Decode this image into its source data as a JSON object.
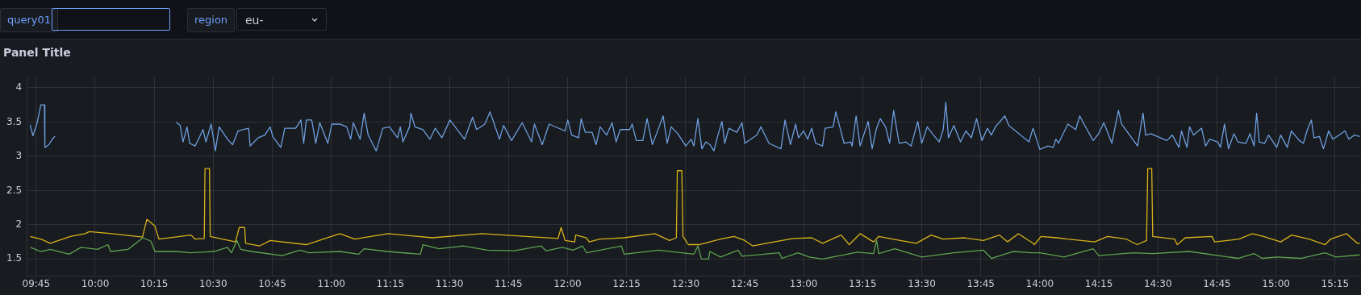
{
  "chart_data": {
    "type": "line",
    "title": "Panel Title",
    "annotations": [
      "query01",
      "region",
      "eu-"
    ],
    "xlim": [
      9.71,
      15.36
    ],
    "xticks": [
      {
        "value": 9.75,
        "label": "09:45"
      },
      {
        "value": 10,
        "label": "10:00"
      },
      {
        "value": 10.25,
        "label": "10:15"
      },
      {
        "value": 10.5,
        "label": "10:30"
      },
      {
        "value": 10.75,
        "label": "10:45"
      },
      {
        "value": 11,
        "label": "11:00"
      },
      {
        "value": 11.25,
        "label": "11:15"
      },
      {
        "value": 11.5,
        "label": "11:30"
      },
      {
        "value": 11.75,
        "label": "11:45"
      },
      {
        "value": 12,
        "label": "12:00"
      },
      {
        "value": 12.25,
        "label": "12:15"
      },
      {
        "value": 12.5,
        "label": "12:30"
      },
      {
        "value": 12.75,
        "label": "12:45"
      },
      {
        "value": 13,
        "label": "13:00"
      },
      {
        "value": 13.25,
        "label": "13:15"
      },
      {
        "value": 13.5,
        "label": "13:30"
      },
      {
        "value": 13.75,
        "label": "13:45"
      },
      {
        "value": 14,
        "label": "14:00"
      },
      {
        "value": 14.25,
        "label": "14:15"
      },
      {
        "value": 14.5,
        "label": "14:30"
      },
      {
        "value": 14.75,
        "label": "14:45"
      },
      {
        "value": 15,
        "label": "15:00"
      },
      {
        "value": 15.25,
        "label": "15:15"
      }
    ],
    "ylim": [
      1.25,
      4.15
    ],
    "yticks": [
      1.5,
      2,
      2.5,
      3,
      3.5,
      4
    ],
    "grid": true,
    "legend": false,
    "marker": "none",
    "series": [
      {
        "color": "#6e9fe0",
        "x": [
          9.725,
          9.736,
          9.753,
          9.77,
          9.785,
          9.787,
          9.804,
          9.82,
          9.83,
          9.84,
          10.343,
          10.36,
          10.372,
          10.389,
          10.4,
          10.423,
          10.457,
          10.469,
          10.491,
          10.509,
          10.525,
          10.56,
          10.582,
          10.605,
          10.65,
          10.656,
          10.69,
          10.718,
          10.741,
          10.752,
          10.786,
          10.803,
          10.849,
          10.871,
          10.883,
          10.894,
          10.917,
          10.934,
          10.951,
          10.985,
          11.002,
          11.036,
          11.065,
          11.082,
          11.093,
          11.122,
          11.139,
          11.156,
          11.19,
          11.218,
          11.246,
          11.28,
          11.292,
          11.303,
          11.331,
          11.337,
          11.354,
          11.388,
          11.417,
          11.44,
          11.468,
          11.502,
          11.564,
          11.598,
          11.615,
          11.65,
          11.672,
          11.712,
          11.729,
          11.763,
          11.808,
          11.848,
          11.86,
          11.893,
          11.922,
          11.99,
          12.001,
          12.018,
          12.047,
          12.058,
          12.075,
          12.104,
          12.121,
          12.138,
          12.166,
          12.189,
          12.206,
          12.223,
          12.263,
          12.274,
          12.291,
          12.319,
          12.337,
          12.359,
          12.388,
          12.405,
          12.422,
          12.439,
          12.467,
          12.501,
          12.524,
          12.535,
          12.552,
          12.569,
          12.586,
          12.603,
          12.62,
          12.637,
          12.654,
          12.666,
          12.683,
          12.717,
          12.739,
          12.751,
          12.802,
          12.819,
          12.853,
          12.904,
          12.921,
          12.944,
          12.966,
          12.978,
          13.0,
          13.017,
          13.034,
          13.051,
          13.08,
          13.091,
          13.125,
          13.136,
          13.153,
          13.171,
          13.199,
          13.205,
          13.222,
          13.239,
          13.262,
          13.273,
          13.29,
          13.307,
          13.324,
          13.347,
          13.364,
          13.381,
          13.404,
          13.432,
          13.455,
          13.483,
          13.5,
          13.523,
          13.545,
          13.574,
          13.591,
          13.602,
          13.613,
          13.636,
          13.664,
          13.687,
          13.71,
          13.732,
          13.755,
          13.778,
          13.795,
          13.812,
          13.852,
          13.869,
          13.954,
          13.971,
          14.0,
          14.034,
          14.057,
          14.068,
          14.079,
          14.096,
          14.119,
          14.152,
          14.169,
          14.187,
          14.226,
          14.249,
          14.271,
          14.305,
          14.333,
          14.346,
          14.414,
          14.437,
          14.448,
          14.47,
          14.538,
          14.561,
          14.589,
          14.6,
          14.623,
          14.634,
          14.651,
          14.685,
          14.702,
          14.719,
          14.753,
          14.765,
          14.782,
          14.799,
          14.822,
          14.839,
          14.873,
          14.89,
          14.907,
          14.918,
          14.929,
          14.952,
          14.969,
          15.003,
          15.02,
          15.048,
          15.065,
          15.099,
          15.116,
          15.133,
          15.15,
          15.161,
          15.184,
          15.201,
          15.223,
          15.241,
          15.292,
          15.309,
          15.332,
          15.355
        ],
        "values": [
          3.46,
          3.3,
          3.47,
          3.75,
          3.75,
          3.13,
          3.17,
          3.26,
          3.29,
          null,
          3.5,
          3.45,
          3.21,
          3.43,
          3.19,
          3.15,
          3.39,
          3.21,
          3.47,
          3.08,
          3.43,
          3.25,
          3.17,
          3.37,
          3.41,
          3.15,
          3.27,
          3.31,
          3.43,
          3.29,
          3.13,
          3.41,
          3.41,
          3.53,
          3.19,
          3.53,
          3.53,
          3.19,
          3.49,
          3.19,
          3.47,
          3.47,
          3.43,
          3.25,
          3.49,
          3.25,
          3.63,
          3.31,
          3.08,
          3.41,
          3.43,
          3.27,
          3.43,
          3.21,
          3.43,
          3.63,
          3.43,
          3.39,
          3.25,
          3.41,
          3.27,
          3.53,
          3.25,
          3.57,
          3.39,
          3.47,
          3.65,
          3.25,
          3.45,
          3.23,
          3.49,
          3.21,
          3.47,
          3.17,
          3.47,
          3.37,
          3.53,
          3.31,
          3.27,
          3.55,
          3.35,
          3.35,
          3.17,
          3.43,
          3.31,
          3.49,
          3.21,
          3.39,
          3.39,
          3.47,
          3.23,
          3.23,
          3.55,
          3.17,
          3.43,
          3.59,
          3.19,
          3.43,
          3.33,
          3.15,
          3.25,
          3.15,
          3.55,
          3.11,
          3.21,
          3.17,
          3.08,
          3.31,
          3.51,
          3.19,
          3.41,
          3.35,
          3.49,
          3.19,
          3.31,
          3.43,
          3.19,
          3.11,
          3.53,
          3.17,
          3.47,
          3.27,
          3.37,
          3.25,
          3.41,
          3.19,
          3.15,
          3.41,
          3.43,
          3.65,
          3.43,
          3.19,
          3.21,
          3.15,
          3.59,
          3.15,
          3.39,
          3.51,
          3.11,
          3.39,
          3.55,
          3.43,
          3.19,
          3.67,
          3.19,
          3.21,
          3.15,
          3.51,
          3.19,
          3.43,
          3.33,
          3.21,
          3.39,
          3.79,
          3.27,
          3.45,
          3.21,
          3.37,
          3.27,
          3.55,
          3.23,
          3.41,
          3.31,
          3.43,
          3.59,
          3.45,
          3.21,
          3.41,
          3.1,
          3.15,
          3.13,
          3.25,
          3.19,
          3.31,
          3.47,
          3.39,
          3.59,
          3.47,
          3.23,
          3.33,
          3.49,
          3.19,
          3.67,
          3.47,
          3.15,
          3.63,
          3.31,
          3.33,
          3.23,
          3.31,
          3.13,
          3.37,
          3.13,
          3.43,
          3.31,
          3.41,
          3.15,
          3.25,
          3.21,
          3.13,
          3.47,
          3.11,
          3.33,
          3.21,
          3.19,
          3.33,
          3.15,
          3.63,
          3.21,
          3.19,
          3.31,
          3.13,
          3.31,
          3.13,
          3.37,
          3.23,
          3.19,
          3.39,
          3.53,
          3.27,
          3.29,
          3.11,
          3.37,
          3.25,
          3.37,
          3.25,
          3.31,
          3.29
        ]
      },
      {
        "color": "#d9b21a",
        "x": [
          9.725,
          9.77,
          9.81,
          9.895,
          9.958,
          9.975,
          10.043,
          10.071,
          10.2,
          10.219,
          10.253,
          10.27,
          10.406,
          10.423,
          10.462,
          10.465,
          10.484,
          10.487,
          10.594,
          10.61,
          10.633,
          10.637,
          10.696,
          10.741,
          10.894,
          11.036,
          11.099,
          11.241,
          11.428,
          11.638,
          11.96,
          11.973,
          11.99,
          12.03,
          12.035,
          12.08,
          12.092,
          12.137,
          12.24,
          12.37,
          12.432,
          12.461,
          12.465,
          12.484,
          12.489,
          12.512,
          12.557,
          12.648,
          12.705,
          12.751,
          12.785,
          12.842,
          12.955,
          13.034,
          13.08,
          13.159,
          13.193,
          13.239,
          13.296,
          13.318,
          13.409,
          13.477,
          13.54,
          13.59,
          13.681,
          13.761,
          13.829,
          13.863,
          13.909,
          13.971,
          13.977,
          14.005,
          14.073,
          14.118,
          14.232,
          14.287,
          14.367,
          14.412,
          14.452,
          14.457,
          14.474,
          14.478,
          14.571,
          14.582,
          14.616,
          14.729,
          14.74,
          14.843,
          14.9,
          14.947,
          15.02,
          15.066,
          15.14,
          15.208,
          15.231,
          15.299,
          15.344,
          15.355
        ],
        "values": [
          1.83,
          1.79,
          1.73,
          1.83,
          1.87,
          1.9,
          1.88,
          1.87,
          1.82,
          2.08,
          1.98,
          1.79,
          1.85,
          1.79,
          1.8,
          2.82,
          2.82,
          1.83,
          1.75,
          1.96,
          1.96,
          1.73,
          1.69,
          1.77,
          1.71,
          1.87,
          1.79,
          1.87,
          1.81,
          1.87,
          1.8,
          1.96,
          1.77,
          1.75,
          1.85,
          1.81,
          1.75,
          1.79,
          1.81,
          1.87,
          1.77,
          1.81,
          2.79,
          2.79,
          1.83,
          1.71,
          1.71,
          1.79,
          1.83,
          1.77,
          1.69,
          1.73,
          1.8,
          1.81,
          1.73,
          1.85,
          1.71,
          1.87,
          1.75,
          1.83,
          1.77,
          1.73,
          1.85,
          1.79,
          1.81,
          1.77,
          1.85,
          1.75,
          1.87,
          1.73,
          1.71,
          1.83,
          1.81,
          1.79,
          1.75,
          1.83,
          1.79,
          1.71,
          1.77,
          2.82,
          2.82,
          1.83,
          1.79,
          1.71,
          1.81,
          1.83,
          1.75,
          1.79,
          1.87,
          1.83,
          1.75,
          1.85,
          1.79,
          1.71,
          1.79,
          1.87,
          1.73,
          1.73
        ]
      },
      {
        "color": "#5fa350",
        "x": [
          9.725,
          9.77,
          9.81,
          9.89,
          9.94,
          10.01,
          10.054,
          10.065,
          10.139,
          10.202,
          10.236,
          10.253,
          10.344,
          10.4,
          10.503,
          10.56,
          10.577,
          10.6,
          10.616,
          10.662,
          10.792,
          10.866,
          10.906,
          11.036,
          11.116,
          11.139,
          11.235,
          11.377,
          11.388,
          11.456,
          11.558,
          11.661,
          11.774,
          11.888,
          11.91,
          11.978,
          12.024,
          12.064,
          12.081,
          12.228,
          12.24,
          12.387,
          12.535,
          12.552,
          12.567,
          12.597,
          12.603,
          12.648,
          12.722,
          12.739,
          12.897,
          12.908,
          12.976,
          13.023,
          13.08,
          13.227,
          13.296,
          13.309,
          13.318,
          13.386,
          13.5,
          13.636,
          13.761,
          13.795,
          13.886,
          13.966,
          14.0,
          14.102,
          14.226,
          14.249,
          14.397,
          14.476,
          14.634,
          14.839,
          14.907,
          14.941,
          15.004,
          15.106,
          15.208,
          15.254,
          15.355
        ],
        "values": [
          1.67,
          1.61,
          1.64,
          1.57,
          1.67,
          1.64,
          1.71,
          1.61,
          1.64,
          1.81,
          1.76,
          1.61,
          1.61,
          1.59,
          1.61,
          1.67,
          1.59,
          1.77,
          1.64,
          1.61,
          1.55,
          1.63,
          1.59,
          1.61,
          1.57,
          1.65,
          1.61,
          1.57,
          1.71,
          1.65,
          1.69,
          1.63,
          1.62,
          1.69,
          1.62,
          1.67,
          1.63,
          1.69,
          1.59,
          1.69,
          1.57,
          1.63,
          1.57,
          1.69,
          1.5,
          1.5,
          1.61,
          1.53,
          1.63,
          1.54,
          1.59,
          1.51,
          1.59,
          1.53,
          1.5,
          1.6,
          1.58,
          1.77,
          1.58,
          1.65,
          1.53,
          1.59,
          1.63,
          1.51,
          1.61,
          1.59,
          1.59,
          1.53,
          1.65,
          1.55,
          1.59,
          1.58,
          1.61,
          1.51,
          1.58,
          1.51,
          1.53,
          1.51,
          1.59,
          1.53,
          1.56
        ]
      }
    ]
  }
}
